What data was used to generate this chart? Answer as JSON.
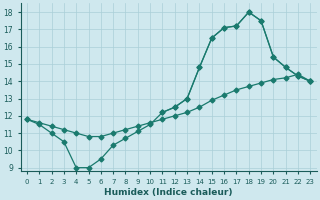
{
  "xlabel": "Humidex (Indice chaleur)",
  "bg_color": "#cfe8ee",
  "grid_color": "#aacfd8",
  "line_color": "#1a7a6e",
  "xlim": [
    -0.5,
    23.5
  ],
  "ylim": [
    8.8,
    18.5
  ],
  "yticks": [
    9,
    10,
    11,
    12,
    13,
    14,
    15,
    16,
    17,
    18
  ],
  "xticks": [
    0,
    1,
    2,
    3,
    4,
    5,
    6,
    7,
    8,
    9,
    10,
    11,
    12,
    13,
    14,
    15,
    16,
    17,
    18,
    19,
    20,
    21,
    22,
    23
  ],
  "line1_x": [
    0,
    1,
    2,
    3,
    4,
    5,
    6,
    7,
    8,
    9,
    10,
    11,
    12,
    13,
    14,
    15,
    16,
    17,
    18,
    19,
    20,
    21,
    22,
    23
  ],
  "line1_y": [
    11.8,
    11.6,
    11.4,
    11.2,
    11.0,
    10.8,
    10.8,
    11.0,
    11.2,
    11.4,
    11.6,
    11.8,
    12.0,
    12.2,
    12.5,
    12.9,
    13.2,
    13.5,
    13.7,
    13.9,
    14.1,
    14.2,
    14.4,
    14.0
  ],
  "line2_x": [
    0,
    1,
    2,
    3,
    4,
    5,
    6,
    7,
    8,
    9,
    10,
    11,
    12,
    13,
    14,
    15,
    16,
    17,
    18,
    19,
    20,
    21,
    22,
    23
  ],
  "line2_y": [
    11.8,
    11.5,
    11.0,
    10.5,
    9.0,
    9.0,
    9.5,
    10.3,
    10.7,
    11.1,
    11.5,
    12.2,
    12.5,
    13.0,
    14.8,
    16.5,
    17.1,
    17.2,
    18.0,
    17.5,
    15.4,
    14.8,
    14.3,
    14.0
  ],
  "line3_x": [
    11,
    12,
    13,
    14,
    15,
    16,
    17,
    18,
    19,
    20,
    21,
    22,
    23
  ],
  "line3_y": [
    12.2,
    12.5,
    13.0,
    14.8,
    16.5,
    17.1,
    17.2,
    18.0,
    17.5,
    15.4,
    14.8,
    14.3,
    14.0
  ]
}
